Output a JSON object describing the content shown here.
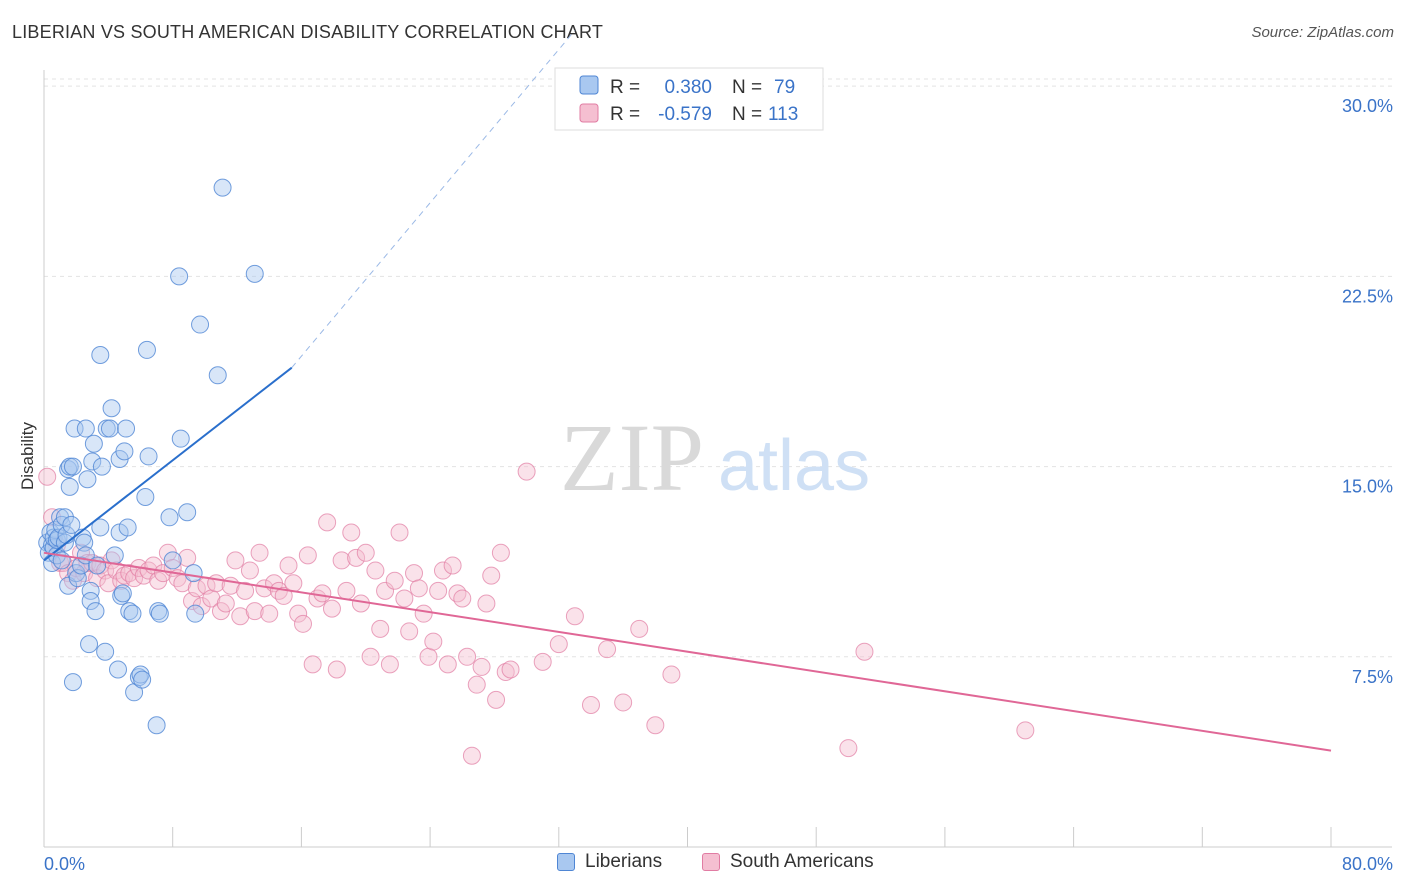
{
  "title": "LIBERIAN VS SOUTH AMERICAN DISABILITY CORRELATION CHART",
  "source": "Source: ZipAtlas.com",
  "watermark": {
    "zip": "ZIP",
    "atlas": "atlas"
  },
  "legend_top": {
    "rows": [
      {
        "r_label": "R = ",
        "r_value": "0.380",
        "n_label": "N = ",
        "n_value": "79"
      },
      {
        "r_label": "R = ",
        "r_value": "-0.579",
        "n_label": "N = ",
        "n_value": "113"
      }
    ]
  },
  "legend_bottom": [
    "Liberians",
    "South Americans"
  ],
  "colors": {
    "blue_fill": "#a9c8f0",
    "blue_stroke": "#4f86d4",
    "blue_line": "#2a6fcc",
    "pink_fill": "#f5bfd1",
    "pink_stroke": "#e17ca3",
    "pink_line": "#e06796",
    "axis_text": "#3a73c8",
    "grid": "#e3e3e3"
  },
  "chart_data": {
    "type": "scatter",
    "title": "LIBERIAN VS SOUTH AMERICAN DISABILITY CORRELATION CHART",
    "xlabel": "",
    "ylabel": "Disability",
    "xlim": [
      0,
      80
    ],
    "ylim": [
      0,
      31.5
    ],
    "x_tick_labels": [
      "0.0%",
      "80.0%"
    ],
    "y_ticks": [
      7.5,
      15.0,
      22.5,
      30.0
    ],
    "y_tick_labels": [
      "7.5%",
      "15.0%",
      "22.5%",
      "30.0%"
    ],
    "grid": true,
    "legend_position": "top-center",
    "series": [
      {
        "name": "Liberians",
        "color": "#a9c8f0",
        "R": 0.38,
        "N": 79,
        "trend": {
          "x": [
            0,
            15.4
          ],
          "y": [
            11.3,
            18.9
          ],
          "extended_x": [
            15.4,
            33
          ],
          "extended_y": [
            18.9,
            32.2
          ]
        },
        "points": [
          [
            0.2,
            12.0
          ],
          [
            0.3,
            11.6
          ],
          [
            0.4,
            12.4
          ],
          [
            0.5,
            11.9
          ],
          [
            0.5,
            11.2
          ],
          [
            0.6,
            11.8
          ],
          [
            0.6,
            12.2
          ],
          [
            0.7,
            12.5
          ],
          [
            0.8,
            11.5
          ],
          [
            0.8,
            12.1
          ],
          [
            0.9,
            12.2
          ],
          [
            1.0,
            13.0
          ],
          [
            1.1,
            12.7
          ],
          [
            1.1,
            11.3
          ],
          [
            1.3,
            13.0
          ],
          [
            1.3,
            12.0
          ],
          [
            1.4,
            12.3
          ],
          [
            1.5,
            10.3
          ],
          [
            1.5,
            14.9
          ],
          [
            1.6,
            14.2
          ],
          [
            1.6,
            15.0
          ],
          [
            1.7,
            12.7
          ],
          [
            1.8,
            6.5
          ],
          [
            1.8,
            15.0
          ],
          [
            1.9,
            16.5
          ],
          [
            2.0,
            10.8
          ],
          [
            2.1,
            10.6
          ],
          [
            2.3,
            11.1
          ],
          [
            2.4,
            12.2
          ],
          [
            2.5,
            12.0
          ],
          [
            2.6,
            11.5
          ],
          [
            2.6,
            16.5
          ],
          [
            2.7,
            14.5
          ],
          [
            2.8,
            8.0
          ],
          [
            2.9,
            10.1
          ],
          [
            2.9,
            9.7
          ],
          [
            3.0,
            15.2
          ],
          [
            3.1,
            15.9
          ],
          [
            3.2,
            9.3
          ],
          [
            3.3,
            11.1
          ],
          [
            3.5,
            12.6
          ],
          [
            3.5,
            19.4
          ],
          [
            3.6,
            15.0
          ],
          [
            3.8,
            7.7
          ],
          [
            3.9,
            16.5
          ],
          [
            4.1,
            16.5
          ],
          [
            4.2,
            17.3
          ],
          [
            4.4,
            11.5
          ],
          [
            4.6,
            7.0
          ],
          [
            4.7,
            12.4
          ],
          [
            4.7,
            15.3
          ],
          [
            4.8,
            9.9
          ],
          [
            4.9,
            10.0
          ],
          [
            5.0,
            15.6
          ],
          [
            5.1,
            16.5
          ],
          [
            5.2,
            12.6
          ],
          [
            5.3,
            9.3
          ],
          [
            5.5,
            9.2
          ],
          [
            5.6,
            6.1
          ],
          [
            5.9,
            6.7
          ],
          [
            6.0,
            6.8
          ],
          [
            6.1,
            6.6
          ],
          [
            6.3,
            13.8
          ],
          [
            6.4,
            19.6
          ],
          [
            6.5,
            15.4
          ],
          [
            7.0,
            4.8
          ],
          [
            7.1,
            9.3
          ],
          [
            7.2,
            9.2
          ],
          [
            7.8,
            13.0
          ],
          [
            8.0,
            11.3
          ],
          [
            8.4,
            22.5
          ],
          [
            8.5,
            16.1
          ],
          [
            8.9,
            13.2
          ],
          [
            9.3,
            10.8
          ],
          [
            9.4,
            9.2
          ],
          [
            9.7,
            20.6
          ],
          [
            10.8,
            18.6
          ],
          [
            11.1,
            26.0
          ],
          [
            13.1,
            22.6
          ]
        ]
      },
      {
        "name": "South Americans",
        "color": "#f5bfd1",
        "R": -0.579,
        "N": 113,
        "trend": {
          "x": [
            0,
            80
          ],
          "y": [
            11.6,
            3.8
          ]
        },
        "points": [
          [
            0.2,
            14.6
          ],
          [
            0.5,
            13.0
          ],
          [
            0.8,
            11.9
          ],
          [
            1.0,
            11.2
          ],
          [
            1.2,
            11.2
          ],
          [
            1.5,
            10.8
          ],
          [
            1.8,
            10.5
          ],
          [
            2.0,
            11.0
          ],
          [
            2.3,
            11.6
          ],
          [
            2.5,
            10.8
          ],
          [
            2.7,
            11.2
          ],
          [
            3.0,
            11.2
          ],
          [
            3.3,
            10.6
          ],
          [
            3.5,
            11.1
          ],
          [
            3.8,
            10.9
          ],
          [
            4.0,
            10.4
          ],
          [
            4.2,
            11.3
          ],
          [
            4.5,
            10.9
          ],
          [
            4.8,
            10.5
          ],
          [
            5.0,
            10.7
          ],
          [
            5.3,
            10.8
          ],
          [
            5.6,
            10.6
          ],
          [
            5.9,
            11.0
          ],
          [
            6.2,
            10.7
          ],
          [
            6.5,
            10.9
          ],
          [
            6.8,
            11.1
          ],
          [
            7.1,
            10.5
          ],
          [
            7.4,
            10.8
          ],
          [
            7.7,
            11.6
          ],
          [
            8.0,
            11.0
          ],
          [
            8.3,
            10.6
          ],
          [
            8.6,
            10.4
          ],
          [
            8.9,
            11.4
          ],
          [
            9.2,
            9.7
          ],
          [
            9.5,
            10.2
          ],
          [
            9.8,
            9.5
          ],
          [
            10.1,
            10.3
          ],
          [
            10.4,
            9.8
          ],
          [
            10.7,
            10.4
          ],
          [
            11.0,
            9.3
          ],
          [
            11.3,
            9.6
          ],
          [
            11.6,
            10.3
          ],
          [
            11.9,
            11.3
          ],
          [
            12.2,
            9.1
          ],
          [
            12.5,
            10.1
          ],
          [
            12.8,
            10.9
          ],
          [
            13.1,
            9.3
          ],
          [
            13.4,
            11.6
          ],
          [
            13.7,
            10.2
          ],
          [
            14.0,
            9.2
          ],
          [
            14.3,
            10.4
          ],
          [
            14.6,
            10.1
          ],
          [
            14.9,
            9.9
          ],
          [
            15.2,
            11.1
          ],
          [
            15.5,
            10.4
          ],
          [
            15.8,
            9.2
          ],
          [
            16.1,
            8.8
          ],
          [
            16.4,
            11.5
          ],
          [
            16.7,
            7.2
          ],
          [
            17.0,
            9.8
          ],
          [
            17.3,
            10.0
          ],
          [
            17.6,
            12.8
          ],
          [
            17.9,
            9.4
          ],
          [
            18.2,
            7.0
          ],
          [
            18.5,
            11.3
          ],
          [
            18.8,
            10.1
          ],
          [
            19.1,
            12.4
          ],
          [
            19.4,
            11.4
          ],
          [
            19.7,
            9.6
          ],
          [
            20.0,
            11.6
          ],
          [
            20.3,
            7.5
          ],
          [
            20.6,
            10.9
          ],
          [
            20.9,
            8.6
          ],
          [
            21.2,
            10.1
          ],
          [
            21.5,
            7.2
          ],
          [
            21.8,
            10.5
          ],
          [
            22.1,
            12.4
          ],
          [
            22.4,
            9.8
          ],
          [
            22.7,
            8.5
          ],
          [
            23.0,
            10.8
          ],
          [
            23.3,
            10.2
          ],
          [
            23.6,
            9.2
          ],
          [
            23.9,
            7.5
          ],
          [
            24.2,
            8.1
          ],
          [
            24.5,
            10.1
          ],
          [
            24.8,
            10.9
          ],
          [
            25.1,
            7.2
          ],
          [
            25.4,
            11.1
          ],
          [
            25.7,
            10.0
          ],
          [
            26.0,
            9.8
          ],
          [
            26.3,
            7.5
          ],
          [
            26.6,
            3.6
          ],
          [
            26.9,
            6.4
          ],
          [
            27.2,
            7.1
          ],
          [
            27.5,
            9.6
          ],
          [
            27.8,
            10.7
          ],
          [
            28.1,
            5.8
          ],
          [
            28.4,
            11.6
          ],
          [
            28.7,
            6.9
          ],
          [
            29.0,
            7.0
          ],
          [
            30.0,
            14.8
          ],
          [
            31.0,
            7.3
          ],
          [
            32.0,
            8.0
          ],
          [
            33.0,
            9.1
          ],
          [
            34.0,
            5.6
          ],
          [
            35.0,
            7.8
          ],
          [
            36.0,
            5.7
          ],
          [
            37.0,
            8.6
          ],
          [
            38.0,
            4.8
          ],
          [
            39.0,
            6.8
          ],
          [
            50.0,
            3.9
          ],
          [
            51.0,
            7.7
          ],
          [
            61.0,
            4.6
          ]
        ]
      }
    ]
  }
}
